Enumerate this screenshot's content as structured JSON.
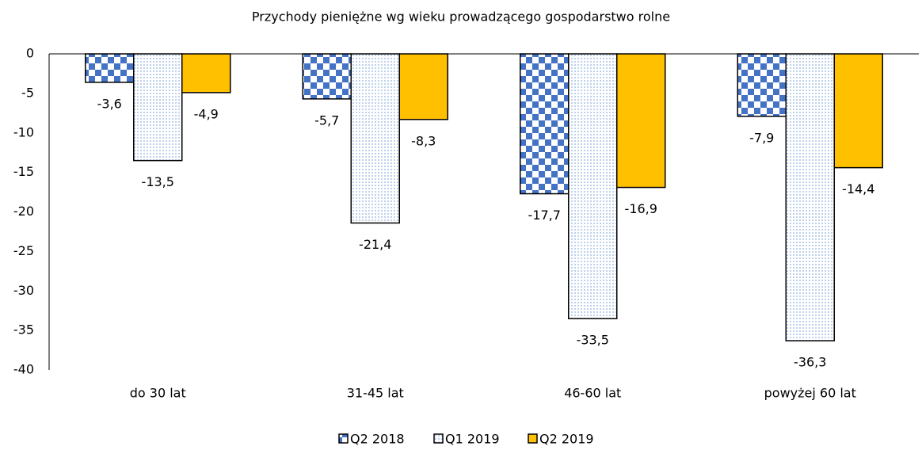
{
  "chart_data": {
    "type": "bar",
    "title": "Przychody pieniężne wg wieku prowadzącego gospodarstwo rolne",
    "categories": [
      "do 30 lat",
      "31-45 lat",
      "46-60 lat",
      "powyżej 60 lat"
    ],
    "series": [
      {
        "name": "Q2 2018",
        "color": "#4472c4",
        "pattern": "checker",
        "values": [
          -3.6,
          -5.7,
          -17.7,
          -7.9
        ],
        "value_labels": [
          "-3,6",
          "-5,7",
          "-17,7",
          "-7,9"
        ]
      },
      {
        "name": "Q1 2019",
        "color": "#8fb0e0",
        "pattern": "dots",
        "values": [
          -13.5,
          -21.4,
          -33.5,
          -36.3
        ],
        "value_labels": [
          "-13,5",
          "-21,4",
          "-33,5",
          "-36,3"
        ]
      },
      {
        "name": "Q2 2019",
        "color": "#ffc000",
        "pattern": "solid",
        "values": [
          -4.9,
          -8.3,
          -16.9,
          -14.4
        ],
        "value_labels": [
          "-4,9",
          "-8,3",
          "-16,9",
          "-14,4"
        ]
      }
    ],
    "ylim": [
      -40,
      0
    ],
    "yticks": [
      0,
      -5,
      -10,
      -15,
      -20,
      -25,
      -30,
      -35,
      -40
    ],
    "grid": false,
    "legend": "bottom"
  }
}
